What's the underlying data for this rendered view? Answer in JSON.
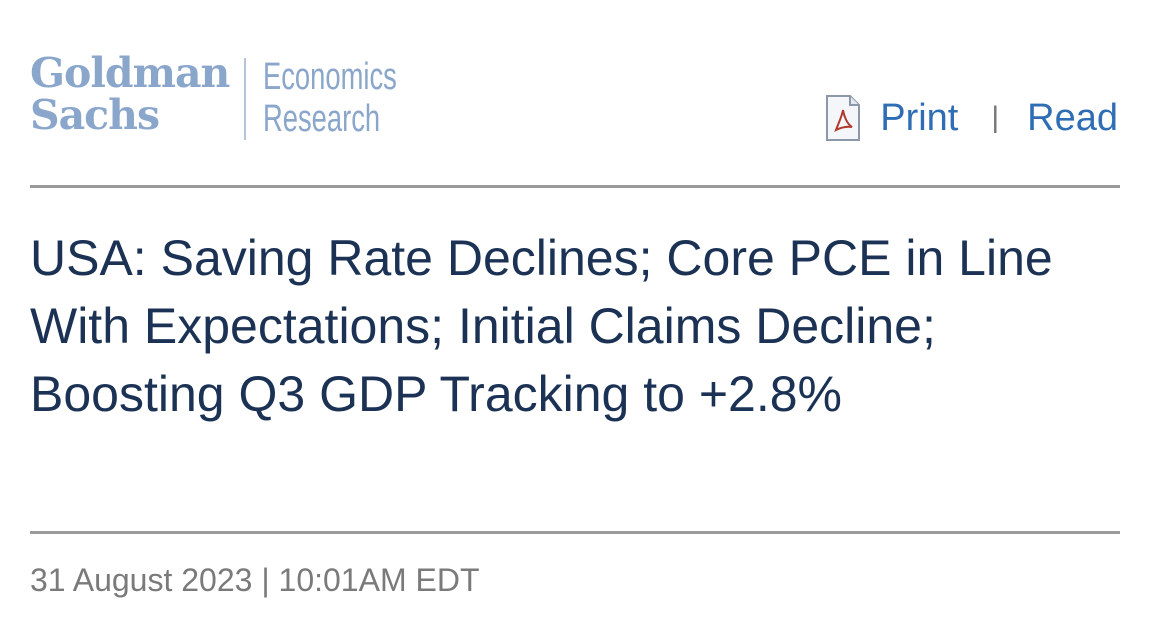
{
  "header": {
    "logo": {
      "brand_line1": "Goldman",
      "brand_line2": "Sachs",
      "unit_line1": "Economics",
      "unit_line2": "Research"
    },
    "actions": {
      "print_label": "Print",
      "separator": "|",
      "read_label": "Read",
      "pdf_icon": "pdf-file-icon"
    }
  },
  "article": {
    "title": "USA: Saving Rate Declines; Core PCE in Line With Expectations; Initial Claims Decline; Boosting Q3 GDP Tracking to +2.8%",
    "dateline": "31 August 2023 | 10:01AM EDT"
  },
  "colors": {
    "logo": "#8aa6cb",
    "link": "#2f6db5",
    "title": "#1b3254",
    "rule": "#9a9a9a",
    "dateline": "#7a7a7a"
  }
}
